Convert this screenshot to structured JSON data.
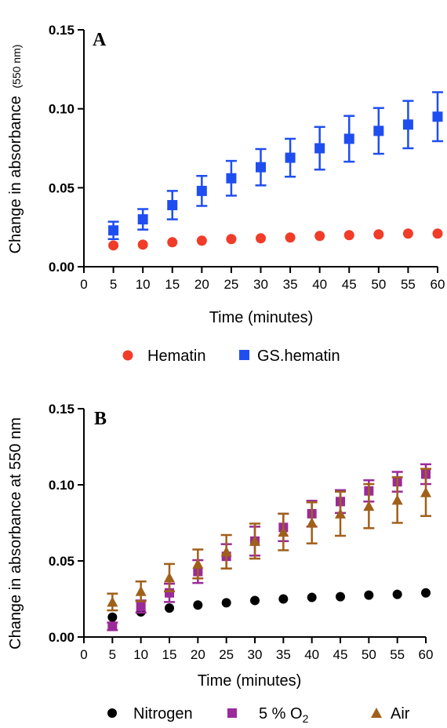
{
  "chart_data": [
    {
      "type": "scatter",
      "panel_label": "A",
      "xlabel": "Time (minutes)",
      "ylabel_main": "Change in absorbance",
      "ylabel_suffix": "(550 nm)",
      "xlim": [
        0,
        60
      ],
      "ylim": [
        0,
        0.15
      ],
      "xticks": [
        "0",
        "5",
        "10",
        "15",
        "20",
        "25",
        "30",
        "35",
        "40",
        "45",
        "50",
        "55",
        "60"
      ],
      "yticks": [
        "0.00",
        "0.05",
        "0.10",
        "0.15"
      ],
      "x": [
        5,
        10,
        15,
        20,
        25,
        30,
        35,
        40,
        45,
        50,
        55,
        60
      ],
      "legend_position": "bottom",
      "series": [
        {
          "name": "Hematin",
          "marker": "circle",
          "color": "#f03c28",
          "values": [
            0.0135,
            0.014,
            0.0155,
            0.0165,
            0.0175,
            0.018,
            0.0185,
            0.0195,
            0.02,
            0.0205,
            0.021,
            0.021
          ],
          "errors": [
            0,
            0,
            0,
            0,
            0,
            0,
            0,
            0,
            0,
            0,
            0,
            0
          ]
        },
        {
          "name": "GS.hematin",
          "marker": "square",
          "color": "#1f4ef0",
          "values": [
            0.023,
            0.03,
            0.039,
            0.048,
            0.056,
            0.063,
            0.069,
            0.075,
            0.081,
            0.086,
            0.09,
            0.095
          ],
          "errors": [
            0.0055,
            0.0065,
            0.009,
            0.0095,
            0.011,
            0.0115,
            0.012,
            0.0135,
            0.0145,
            0.0145,
            0.015,
            0.0155
          ]
        }
      ]
    },
    {
      "type": "scatter",
      "panel_label": "B",
      "xlabel": "Time (minutes)",
      "ylabel": "Change in absorbance at 550 nm",
      "xlim": [
        0,
        60
      ],
      "ylim": [
        0,
        0.15
      ],
      "xticks": [
        "0",
        "5",
        "10",
        "15",
        "20",
        "25",
        "30",
        "35",
        "40",
        "45",
        "50",
        "55",
        "60"
      ],
      "yticks": [
        "0.00",
        "0.05",
        "0.10",
        "0.15"
      ],
      "x": [
        5,
        10,
        15,
        20,
        25,
        30,
        35,
        40,
        45,
        50,
        55,
        60
      ],
      "legend_position": "bottom",
      "series": [
        {
          "name": "Nitrogen",
          "marker": "circle",
          "color": "#000000",
          "values": [
            0.013,
            0.0165,
            0.019,
            0.021,
            0.0225,
            0.024,
            0.025,
            0.026,
            0.0265,
            0.0275,
            0.028,
            0.029
          ],
          "errors": [
            0,
            0,
            0,
            0,
            0,
            0,
            0,
            0,
            0,
            0,
            0,
            0
          ]
        },
        {
          "name": "5 % O",
          "name_subscript": "2",
          "marker": "square",
          "color": "#9b2a9a",
          "values": [
            0.007,
            0.02,
            0.029,
            0.043,
            0.053,
            0.063,
            0.072,
            0.081,
            0.089,
            0.096,
            0.102,
            0.107
          ],
          "errors": [
            0.0025,
            0.004,
            0.006,
            0.0075,
            0.008,
            0.0095,
            0.009,
            0.0085,
            0.0075,
            0.007,
            0.0065,
            0.0065
          ]
        },
        {
          "name": "Air",
          "marker": "triangle",
          "color": "#a0601a",
          "values": [
            0.023,
            0.03,
            0.039,
            0.048,
            0.056,
            0.063,
            0.069,
            0.075,
            0.081,
            0.086,
            0.09,
            0.095
          ],
          "errors": [
            0.0055,
            0.0065,
            0.009,
            0.0095,
            0.011,
            0.0115,
            0.012,
            0.0135,
            0.0145,
            0.0145,
            0.015,
            0.0155
          ]
        }
      ]
    }
  ]
}
